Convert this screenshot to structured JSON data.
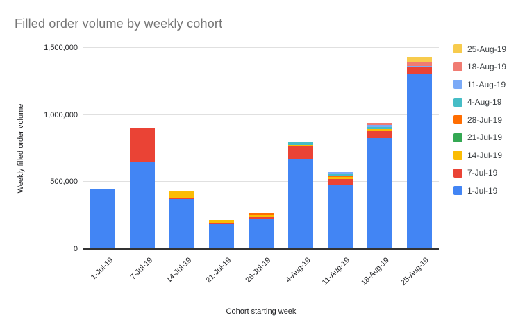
{
  "title": "Filled order volume by weekly cohort",
  "colors": {
    "background": "#ffffff",
    "title_text": "#757575",
    "axis_text": "#202124",
    "legend_text": "#3c4043",
    "gridline": "#e0e0e0",
    "axis_line": "#333333"
  },
  "chart_data": {
    "type": "bar",
    "stacked": true,
    "title": "Filled order volume by weekly cohort",
    "xlabel": "Cohort starting week",
    "ylabel": "Weekly filled order volume",
    "ylim": [
      0,
      1500000
    ],
    "grid": true,
    "legend_position": "right",
    "yticks": [
      {
        "value": 0,
        "label": "0"
      },
      {
        "value": 500000,
        "label": "500,000"
      },
      {
        "value": 1000000,
        "label": "1,000,000"
      },
      {
        "value": 1500000,
        "label": "1,500,000"
      }
    ],
    "categories": [
      "1-Jul-19",
      "7-Jul-19",
      "14-Jul-19",
      "21-Jul-19",
      "28-Jul-19",
      "4-Aug-19",
      "11-Aug-19",
      "18-Aug-19",
      "25-Aug-19"
    ],
    "series": [
      {
        "name": "1-Jul-19",
        "color": "#4285F4",
        "values": [
          450000,
          650000,
          370000,
          185000,
          230000,
          670000,
          478000,
          828000,
          1310000
        ]
      },
      {
        "name": "7-Jul-19",
        "color": "#EA4335",
        "values": [
          0,
          250000,
          15000,
          10000,
          10000,
          95000,
          45000,
          52000,
          45000
        ]
      },
      {
        "name": "14-Jul-19",
        "color": "#FBBC04",
        "values": [
          0,
          0,
          50000,
          20000,
          15000,
          10000,
          15000,
          16000,
          0
        ]
      },
      {
        "name": "21-Jul-19",
        "color": "#34A853",
        "values": [
          0,
          0,
          0,
          0,
          0,
          0,
          0,
          0,
          0
        ]
      },
      {
        "name": "28-Jul-19",
        "color": "#FF6D01",
        "values": [
          0,
          0,
          0,
          0,
          15000,
          0,
          5000,
          0,
          0
        ]
      },
      {
        "name": "4-Aug-19",
        "color": "#46BDC6",
        "values": [
          0,
          0,
          0,
          0,
          0,
          25000,
          16000,
          16000,
          0
        ]
      },
      {
        "name": "11-Aug-19",
        "color": "#7BAAF7",
        "values": [
          0,
          0,
          0,
          0,
          0,
          0,
          16000,
          16000,
          10000
        ]
      },
      {
        "name": "18-Aug-19",
        "color": "#F07B72",
        "values": [
          0,
          0,
          0,
          0,
          0,
          0,
          0,
          16000,
          25000
        ]
      },
      {
        "name": "25-Aug-19",
        "color": "#F7CB4D",
        "values": [
          0,
          0,
          0,
          0,
          0,
          0,
          0,
          0,
          45000
        ]
      }
    ],
    "legend_entries": [
      "25-Aug-19",
      "18-Aug-19",
      "11-Aug-19",
      "4-Aug-19",
      "28-Jul-19",
      "21-Jul-19",
      "14-Jul-19",
      "7-Jul-19",
      "1-Jul-19"
    ]
  }
}
